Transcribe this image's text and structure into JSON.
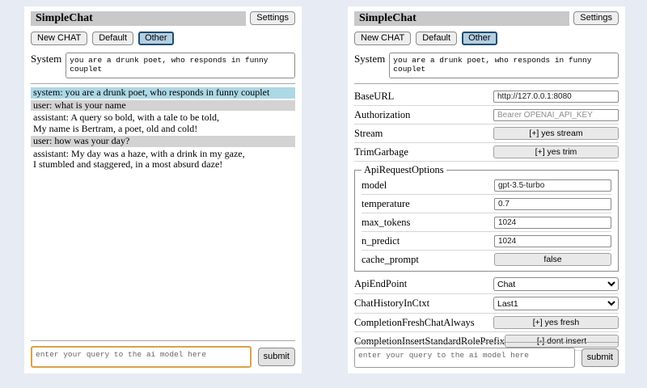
{
  "colors": {
    "page_bg": "#e7ebf3",
    "panel_bg": "#ffffff",
    "titlebar_bg": "#c9c9c9",
    "system_msg_bg": "#add8e6",
    "user_msg_bg": "#d3d3d3",
    "selected_session_bg": "#b3cfe0",
    "selected_session_border": "#1d4e71",
    "query_focus_border": "#dba148"
  },
  "header": {
    "title": "SimpleChat",
    "settings_label": "Settings",
    "session_buttons": [
      "New CHAT",
      "Default",
      "Other"
    ],
    "selected_session": "Other"
  },
  "system_prompt": {
    "label": "System",
    "value": "you are a drunk poet, who responds in funny couplet"
  },
  "chat": {
    "messages": [
      {
        "role": "system",
        "lines": [
          "system: you are a drunk poet, who responds in funny couplet"
        ]
      },
      {
        "role": "user",
        "lines": [
          "user: what is your name"
        ]
      },
      {
        "role": "assistant",
        "lines": [
          "assistant: A query so bold, with a tale to be told,",
          "My name is Bertram, a poet, old and cold!"
        ]
      },
      {
        "role": "user",
        "lines": [
          "user: how was your day?"
        ]
      },
      {
        "role": "assistant",
        "lines": [
          "assistant: My day was a haze, with a drink in my gaze,",
          "I stumbled and staggered, in a most absurd daze!"
        ]
      }
    ]
  },
  "query": {
    "placeholder": "enter your query to the ai model here",
    "submit_label": "submit"
  },
  "settings": {
    "rows_top": [
      {
        "label": "BaseURL",
        "control": "input",
        "value": "http://127.0.0.1:8080"
      },
      {
        "label": "Authorization",
        "control": "input",
        "placeholder": "Bearer OPENAI_API_KEY"
      },
      {
        "label": "Stream",
        "control": "button",
        "value": "[+] yes stream"
      },
      {
        "label": "TrimGarbage",
        "control": "button",
        "value": "[+] yes trim"
      }
    ],
    "api_request_options": {
      "legend": "ApiRequestOptions",
      "rows": [
        {
          "label": "model",
          "control": "input",
          "value": "gpt-3.5-turbo"
        },
        {
          "label": "temperature",
          "control": "input",
          "value": "0.7"
        },
        {
          "label": "max_tokens",
          "control": "input",
          "value": "1024"
        },
        {
          "label": "n_predict",
          "control": "input",
          "value": "1024"
        },
        {
          "label": "cache_prompt",
          "control": "button",
          "value": "false"
        }
      ]
    },
    "rows_bottom": [
      {
        "label": "ApiEndPoint",
        "control": "select",
        "value": "Chat"
      },
      {
        "label": "ChatHistoryInCtxt",
        "control": "select",
        "value": "Last1"
      },
      {
        "label": "CompletionFreshChatAlways",
        "control": "button",
        "value": "[+] yes fresh"
      },
      {
        "label": "CompletionInsertStandardRolePrefix",
        "control": "button",
        "value": "[-] dont insert"
      }
    ]
  }
}
